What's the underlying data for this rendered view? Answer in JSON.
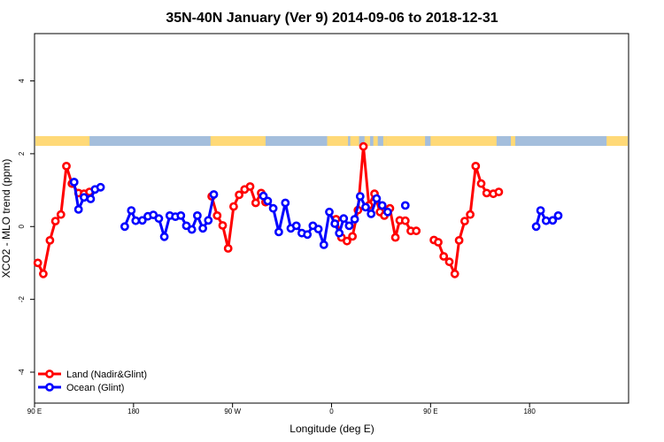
{
  "chart_data": {
    "type": "line",
    "title": "35N-40N January (Ver 9)   2014-09-06 to 2018-12-31",
    "xlabel": "Longitude (deg E)",
    "ylabel": "XCO2 - MLO trend (ppm)",
    "xlim": [
      90,
      630
    ],
    "ylim": [
      -4.85,
      5.3
    ],
    "x_ticks": [
      {
        "value": 90,
        "label": "90 E"
      },
      {
        "value": 180,
        "label": "180"
      },
      {
        "value": 270,
        "label": "90 W"
      },
      {
        "value": 360,
        "label": "0"
      },
      {
        "value": 450,
        "label": "90 E"
      },
      {
        "value": 540,
        "label": "180"
      }
    ],
    "y_ticks": [
      {
        "value": -4,
        "label": "-4"
      },
      {
        "value": -2,
        "label": "-2"
      },
      {
        "value": 0,
        "label": "0"
      },
      {
        "value": 2,
        "label": "2"
      },
      {
        "value": 4,
        "label": "4"
      }
    ],
    "land_mask_colors": {
      "land": "#ffd977",
      "ocean": "#a4bedc"
    },
    "legend_position": "bottom-left",
    "series": [
      {
        "name": "Land (Nadir&Glint)",
        "color": "#ff0000",
        "segments": [
          [
            [
              93,
              -1.0
            ],
            [
              98,
              -1.3
            ],
            [
              104,
              -0.38
            ],
            [
              109,
              0.15
            ],
            [
              114,
              0.33
            ],
            [
              119,
              1.66
            ],
            [
              124,
              1.18
            ],
            [
              130,
              0.92
            ],
            [
              135,
              0.9
            ],
            [
              140,
              0.95
            ]
          ],
          [
            [
              251,
              0.83
            ],
            [
              256,
              0.3
            ],
            [
              261,
              0.03
            ],
            [
              266,
              -0.6
            ],
            [
              271,
              0.55
            ],
            [
              276,
              0.87
            ],
            [
              281,
              1.02
            ],
            [
              286,
              1.1
            ],
            [
              291,
              0.65
            ],
            [
              296,
              0.92
            ],
            [
              300,
              0.67
            ]
          ],
          [
            [
              364,
              0.2
            ],
            [
              369,
              -0.3
            ],
            [
              374,
              -0.4
            ],
            [
              379,
              -0.27
            ],
            [
              384,
              0.45
            ],
            [
              389,
              2.2
            ],
            [
              394,
              0.58
            ],
            [
              399,
              0.9
            ],
            [
              404,
              0.4
            ],
            [
              408,
              0.3
            ],
            [
              413,
              0.5
            ],
            [
              418,
              -0.3
            ],
            [
              422,
              0.17
            ],
            [
              427,
              0.16
            ],
            [
              432,
              -0.12
            ],
            [
              437,
              -0.12
            ]
          ],
          [
            [
              453,
              -0.37
            ],
            [
              457,
              -0.43
            ],
            [
              462,
              -0.82
            ],
            [
              467,
              -0.97
            ],
            [
              472,
              -1.3
            ],
            [
              476,
              -0.38
            ],
            [
              481,
              0.15
            ],
            [
              486,
              0.33
            ],
            [
              491,
              1.66
            ],
            [
              496,
              1.18
            ],
            [
              501,
              0.92
            ],
            [
              507,
              0.9
            ],
            [
              512,
              0.95
            ]
          ]
        ]
      },
      {
        "name": "Ocean (Glint)",
        "color": "#0000ff",
        "segments": [
          [
            [
              126,
              1.22
            ],
            [
              130,
              0.47
            ],
            [
              135,
              0.8
            ],
            [
              141,
              0.76
            ],
            [
              145,
              1.02
            ],
            [
              150,
              1.08
            ]
          ],
          [
            [
              172,
              0.0
            ],
            [
              178,
              0.44
            ],
            [
              182,
              0.16
            ],
            [
              188,
              0.17
            ],
            [
              193,
              0.28
            ],
            [
              198,
              0.32
            ],
            [
              203,
              0.22
            ],
            [
              208,
              -0.28
            ],
            [
              213,
              0.3
            ],
            [
              218,
              0.27
            ],
            [
              223,
              0.3
            ],
            [
              228,
              0.02
            ],
            [
              233,
              -0.08
            ],
            [
              238,
              0.3
            ],
            [
              243,
              -0.05
            ],
            [
              248,
              0.17
            ],
            [
              253,
              0.88
            ]
          ],
          [
            [
              298,
              0.84
            ],
            [
              302,
              0.7
            ],
            [
              307,
              0.5
            ],
            [
              312,
              -0.15
            ],
            [
              318,
              0.65
            ],
            [
              323,
              -0.05
            ],
            [
              328,
              0.02
            ],
            [
              333,
              -0.18
            ],
            [
              338,
              -0.22
            ],
            [
              343,
              0.02
            ],
            [
              348,
              -0.07
            ],
            [
              353,
              -0.5
            ],
            [
              358,
              0.4
            ],
            [
              363,
              0.08
            ],
            [
              367,
              -0.18
            ],
            [
              371,
              0.22
            ],
            [
              376,
              0.02
            ],
            [
              381,
              0.2
            ],
            [
              386,
              0.83
            ],
            [
              391,
              0.53
            ],
            [
              396,
              0.35
            ],
            [
              401,
              0.77
            ],
            [
              406,
              0.58
            ],
            [
              411,
              0.4
            ]
          ],
          [
            [
              427,
              0.58
            ]
          ],
          [
            [
              546,
              0.0
            ],
            [
              550,
              0.44
            ],
            [
              555,
              0.16
            ],
            [
              561,
              0.17
            ],
            [
              566,
              0.3
            ]
          ],
          [
            [
              126,
              1.22
            ]
          ]
        ]
      }
    ]
  }
}
